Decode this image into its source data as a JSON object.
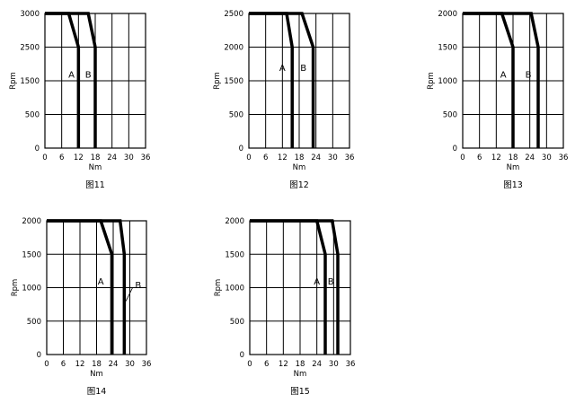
{
  "chart_data": [
    {
      "type": "line",
      "caption": "图11",
      "xlabel": "Nm",
      "ylabel": "Rpm",
      "x_ticks": [
        "0",
        "6",
        "12",
        "18",
        "24",
        "30",
        "36"
      ],
      "xlim": [
        0,
        36
      ],
      "y_ticks": [
        "0",
        "500",
        "1500",
        "2500",
        "3000"
      ],
      "grid": true,
      "series": [
        {
          "name": "A",
          "points": [
            [
              0,
              3000
            ],
            [
              8.5,
              3000
            ],
            [
              12,
              2500
            ],
            [
              12,
              0
            ]
          ]
        },
        {
          "name": "B",
          "points": [
            [
              0,
              3000
            ],
            [
              15.5,
              3000
            ],
            [
              18,
              2500
            ],
            [
              18,
              0
            ]
          ]
        }
      ],
      "annotations": [
        {
          "text": "A",
          "x": 9.5,
          "y": 1700
        },
        {
          "text": "B",
          "x": 15.5,
          "y": 1700
        }
      ]
    },
    {
      "type": "line",
      "caption": "图12",
      "xlabel": "Nm",
      "ylabel": "Rpm",
      "x_ticks": [
        "0",
        "6",
        "12",
        "18",
        "24",
        "30",
        "36"
      ],
      "xlim": [
        0,
        36
      ],
      "y_ticks": [
        "0",
        "500",
        "1500",
        "2000",
        "2500"
      ],
      "grid": true,
      "series": [
        {
          "name": "A",
          "points": [
            [
              0,
              2500
            ],
            [
              13.5,
              2500
            ],
            [
              15.5,
              2000
            ],
            [
              15.5,
              0
            ]
          ]
        },
        {
          "name": "B",
          "points": [
            [
              0,
              2500
            ],
            [
              19,
              2500
            ],
            [
              23,
              2000
            ],
            [
              23,
              0
            ]
          ]
        }
      ],
      "annotations": [
        {
          "text": "A",
          "x": 12,
          "y": 1700
        },
        {
          "text": "B",
          "x": 19.5,
          "y": 1700
        }
      ]
    },
    {
      "type": "line",
      "caption": "图13",
      "xlabel": "Nm",
      "ylabel": "Rpm",
      "x_ticks": [
        "0",
        "6",
        "12",
        "18",
        "24",
        "30",
        "36"
      ],
      "xlim": [
        0,
        36
      ],
      "y_ticks": [
        "0",
        "500",
        "1000",
        "1500",
        "2000"
      ],
      "grid": true,
      "series": [
        {
          "name": "A",
          "points": [
            [
              0,
              2000
            ],
            [
              14,
              2000
            ],
            [
              18,
              1500
            ],
            [
              18,
              0
            ]
          ]
        },
        {
          "name": "B",
          "points": [
            [
              0,
              2000
            ],
            [
              24.5,
              2000
            ],
            [
              27,
              1500
            ],
            [
              27,
              0
            ]
          ]
        }
      ],
      "annotations": [
        {
          "text": "A",
          "x": 14.5,
          "y": 1100
        },
        {
          "text": "B",
          "x": 23.5,
          "y": 1100
        }
      ]
    },
    {
      "type": "line",
      "caption": "图14",
      "xlabel": "Nm",
      "ylabel": "Rpm",
      "x_ticks": [
        "0",
        "6",
        "12",
        "18",
        "24",
        "30",
        "36"
      ],
      "xlim": [
        0,
        36
      ],
      "y_ticks": [
        "0",
        "500",
        "1000",
        "1500",
        "2000"
      ],
      "grid": true,
      "series": [
        {
          "name": "A",
          "points": [
            [
              0,
              2000
            ],
            [
              19.5,
              2000
            ],
            [
              23.5,
              1500
            ],
            [
              23.5,
              0
            ]
          ]
        },
        {
          "name": "B",
          "points": [
            [
              0,
              2000
            ],
            [
              26.5,
              2000
            ],
            [
              28,
              1500
            ],
            [
              28,
              0
            ]
          ]
        }
      ],
      "annotations": [
        {
          "text": "A",
          "x": 19.5,
          "y": 1100
        },
        {
          "text": "B",
          "x": 33,
          "y": 1050
        }
      ]
    },
    {
      "type": "line",
      "caption": "图15",
      "xlabel": "Nm",
      "ylabel": "Rpm",
      "x_ticks": [
        "0",
        "6",
        "12",
        "18",
        "24",
        "30",
        "36"
      ],
      "xlim": [
        0,
        36
      ],
      "y_ticks": [
        "0",
        "500",
        "1000",
        "1500",
        "2000"
      ],
      "grid": true,
      "series": [
        {
          "name": "A",
          "points": [
            [
              0,
              2000
            ],
            [
              24,
              2000
            ],
            [
              27,
              1500
            ],
            [
              27,
              0
            ]
          ]
        },
        {
          "name": "B",
          "points": [
            [
              0,
              2000
            ],
            [
              29.5,
              2000
            ],
            [
              31.5,
              1500
            ],
            [
              31.5,
              0
            ]
          ]
        }
      ],
      "annotations": [
        {
          "text": "A",
          "x": 24,
          "y": 1100
        },
        {
          "text": "B",
          "x": 29,
          "y": 1100
        }
      ]
    }
  ]
}
